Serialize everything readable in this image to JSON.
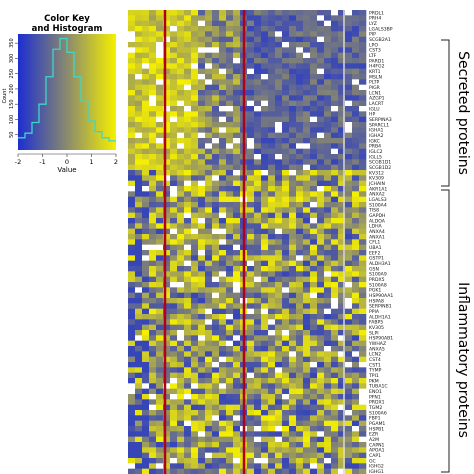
{
  "chart_data": {
    "type": "heatmap",
    "color_key": {
      "title": "Color Key",
      "subtitle": "and Histogram",
      "xlabel": "Value",
      "ylabel": "Count",
      "x_ticks": [
        "-2",
        "-1",
        "0",
        "1",
        "2"
      ],
      "y_ticks": [
        "50",
        "100",
        "150",
        "200",
        "250",
        "300",
        "350"
      ],
      "xlim": [
        -2,
        2
      ],
      "ylim": [
        0,
        380
      ],
      "colors": {
        "low": "#1c2fd0",
        "mid": "#8a8a6e",
        "high": "#f5f000"
      },
      "histogram_line_color": "#3fd6c8",
      "histogram": [
        40,
        55,
        90,
        150,
        240,
        330,
        365,
        320,
        240,
        160,
        95,
        60,
        40,
        30
      ]
    },
    "column_count": 34,
    "row_labels": [
      "PRDL1",
      "PRH4",
      "LYZ",
      "LGALS3BP",
      "PIP",
      "SCGB2A1",
      "LPO",
      "CST3",
      "LTF",
      "PARD1",
      "H4FG2",
      "KRT1",
      "MSLN",
      "PLTP",
      "PIGR",
      "LCN1",
      "AZGP1",
      "LACRT",
      "IGLU",
      "HP",
      "SERPINA3",
      "SPARCL1",
      "IGHA1",
      "IGHA2",
      "IGKC",
      "PRB4",
      "IGLC2",
      "IGLL5",
      "SCGB1D1",
      "SCGB1D2",
      "KV312",
      "KV309",
      "JCHAIN",
      "AKR1A1",
      "ANXA2",
      "LGALS3",
      "S100A4",
      "TIS8",
      "GAPDH",
      "ALDOA",
      "LDHA",
      "ANXA4",
      "ANXA1",
      "CFL1",
      "UBA1",
      "EEF2",
      "GSTP1",
      "ALDH3A1",
      "GSN",
      "S100A9",
      "PRDX5",
      "S100A8",
      "PGK1",
      "HSP90AA1",
      "HSPA8",
      "SERPINB1",
      "PPIA",
      "ALDH1A1",
      "FABP5",
      "KV305",
      "SLPI",
      "HSP90AB1",
      "YWHAZ",
      "ANXA5",
      "LCN2",
      "CST4",
      "CST1",
      "TYMP",
      "TPI1",
      "PKM",
      "TUBA1C",
      "ENO1",
      "PFN1",
      "PRDX1",
      "TGM2",
      "S100A6",
      "FBP1",
      "PGAM1",
      "HSPB1",
      "EZR",
      "A2M",
      "CAPN1",
      "APOA1",
      "CAP1",
      "GC",
      "IGHG2",
      "IGHG1"
    ],
    "groups": [
      {
        "label": "Secreted proteins",
        "row_start": 0,
        "row_end": 29
      },
      {
        "label": "Inflammatory proteins",
        "row_start": 30,
        "row_end": 86
      }
    ]
  }
}
